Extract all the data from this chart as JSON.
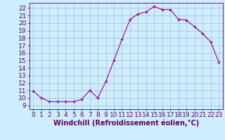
{
  "x": [
    0,
    1,
    2,
    3,
    4,
    5,
    6,
    7,
    8,
    9,
    10,
    11,
    12,
    13,
    14,
    15,
    16,
    17,
    18,
    19,
    20,
    21,
    22,
    23
  ],
  "y": [
    10.9,
    10.0,
    9.5,
    9.5,
    9.5,
    9.5,
    9.8,
    11.0,
    10.0,
    12.2,
    15.0,
    17.8,
    20.5,
    21.2,
    21.5,
    22.2,
    21.8,
    21.8,
    20.5,
    20.4,
    19.5,
    18.6,
    17.5,
    14.8
  ],
  "line_color": "#990099",
  "marker": "+",
  "marker_color": "#990099",
  "bg_color": "#cceeff",
  "grid_color": "#aabbcc",
  "xlabel": "Windchill (Refroidissement éolien,°C)",
  "xlabel_color": "#660066",
  "tick_color": "#660066",
  "axis_color": "#660066",
  "xlim": [
    -0.5,
    23.5
  ],
  "ylim": [
    8.5,
    22.7
  ],
  "yticks": [
    9,
    10,
    11,
    12,
    13,
    14,
    15,
    16,
    17,
    18,
    19,
    20,
    21,
    22
  ],
  "xticks": [
    0,
    1,
    2,
    3,
    4,
    5,
    6,
    7,
    8,
    9,
    10,
    11,
    12,
    13,
    14,
    15,
    16,
    17,
    18,
    19,
    20,
    21,
    22,
    23
  ],
  "font_size": 6.5,
  "label_fontsize": 7.0,
  "linewidth": 0.8,
  "markersize": 3.5
}
